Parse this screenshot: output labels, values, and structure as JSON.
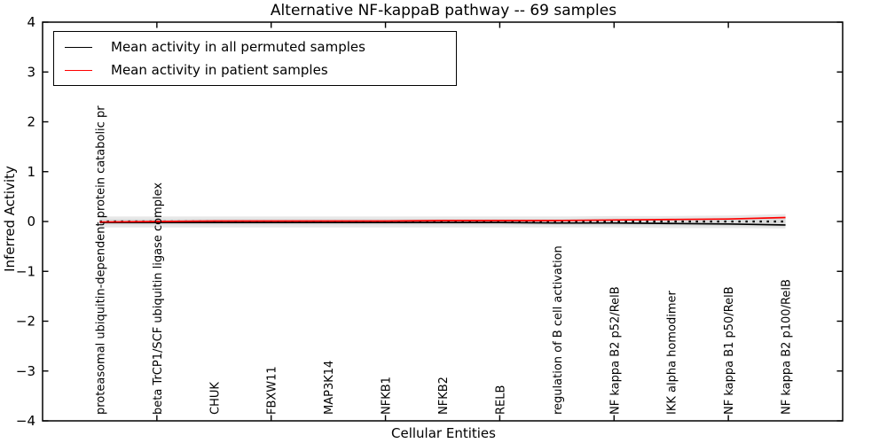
{
  "title": "Alternative NF-kappaB pathway -- 69 samples",
  "chart_data": {
    "type": "line",
    "title": "Alternative NF-kappaB pathway -- 69 samples",
    "xlabel": "Cellular Entities",
    "ylabel": "Inferred Activity",
    "xlim": [
      0,
      14
    ],
    "ylim": [
      -4,
      4
    ],
    "grid": false,
    "yticks": [
      {
        "value": 4,
        "label": "4"
      },
      {
        "value": 3,
        "label": "3"
      },
      {
        "value": 2,
        "label": "2"
      },
      {
        "value": 1,
        "label": "1"
      },
      {
        "value": 0,
        "label": "0"
      },
      {
        "value": -1,
        "label": "−1"
      },
      {
        "value": -2,
        "label": "−2"
      },
      {
        "value": -3,
        "label": "−3"
      },
      {
        "value": -4,
        "label": "−4"
      }
    ],
    "xtick_values": [
      2,
      4,
      6,
      8,
      10,
      12
    ],
    "categories": [
      "proteasomal ubiquitin-dependent protein catabolic pr",
      "beta TrCP1/SCF ubiquitin ligase complex",
      "CHUK",
      "FBXW11",
      "MAP3K14",
      "NFKB1",
      "NFKB2",
      "RELB",
      "regulation of B cell activation",
      "NF kappa B2 p52/RelB",
      "IKK alpha homodimer",
      "NF kappa B1 p50/RelB",
      "NF kappa B2 p100/RelB"
    ],
    "x": [
      1,
      2,
      3,
      4,
      5,
      6,
      7,
      8,
      9,
      10,
      11,
      12,
      13
    ],
    "series": [
      {
        "name": "Mean activity in all permuted samples",
        "color": "#000000",
        "style": "solid",
        "values": [
          -0.02,
          -0.02,
          -0.02,
          -0.02,
          -0.02,
          -0.02,
          -0.02,
          -0.02,
          -0.03,
          -0.03,
          -0.04,
          -0.05,
          -0.07
        ]
      },
      {
        "name": "baseline (dotted)",
        "color": "#000000",
        "style": "dotted",
        "values": [
          0,
          0,
          0,
          0,
          0,
          0,
          0,
          0,
          0,
          0,
          0,
          0,
          0
        ]
      },
      {
        "name": "Mean activity in patient samples",
        "color": "#ff0000",
        "style": "solid",
        "values": [
          -0.01,
          0.0,
          0.01,
          0.01,
          0.01,
          0.01,
          0.02,
          0.02,
          0.02,
          0.03,
          0.04,
          0.05,
          0.08
        ]
      }
    ],
    "bands": [
      {
        "name": "permuted spread outer",
        "color": "#e8e8e8",
        "upper": [
          0.1,
          0.1,
          0.1,
          0.1,
          0.1,
          0.1,
          0.1,
          0.1,
          0.1,
          0.11,
          0.11,
          0.12,
          0.15
        ],
        "lower": [
          -0.12,
          -0.12,
          -0.12,
          -0.12,
          -0.12,
          -0.12,
          -0.12,
          -0.12,
          -0.12,
          -0.12,
          -0.13,
          -0.13,
          -0.14
        ]
      },
      {
        "name": "permuted spread inner",
        "color": "#dbdbdb",
        "upper": [
          0.05,
          0.05,
          0.05,
          0.05,
          0.05,
          0.05,
          0.05,
          0.05,
          0.05,
          0.06,
          0.06,
          0.07,
          0.09
        ],
        "lower": [
          -0.07,
          -0.07,
          -0.07,
          -0.07,
          -0.07,
          -0.07,
          -0.07,
          -0.07,
          -0.07,
          -0.08,
          -0.08,
          -0.09,
          -0.1
        ]
      }
    ],
    "legend": {
      "position": "upper left",
      "entries": [
        {
          "label": "Mean activity in all permuted samples",
          "color": "#000000"
        },
        {
          "label": "Mean activity in patient samples",
          "color": "#ff0000"
        }
      ]
    }
  }
}
